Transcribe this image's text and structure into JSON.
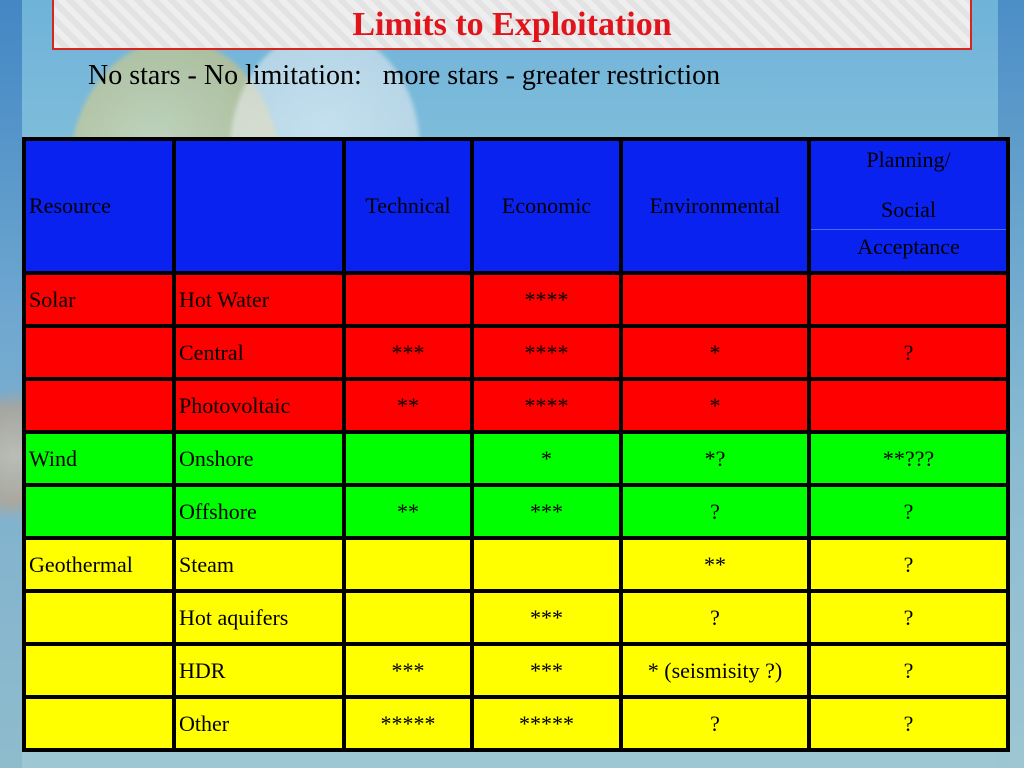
{
  "title": "Limits to Exploitation",
  "subtitle": "No stars - No limitation:   more stars - greater restriction",
  "header": {
    "resource": "Resource",
    "type": "",
    "technical": "Technical",
    "economic": "Economic",
    "environmental": "Environmental",
    "planning_line1": "Planning/",
    "planning_line2": "Social",
    "planning_line3": "Acceptance"
  },
  "rows": [
    {
      "group": "Solar",
      "type": "Hot Water",
      "technical": "",
      "economic": "****",
      "environmental": "",
      "planning": "",
      "color": "#ff0000"
    },
    {
      "group": "",
      "type": "Central",
      "technical": "***",
      "economic": "****",
      "environmental": "*",
      "planning": "?",
      "color": "#ff0000"
    },
    {
      "group": "",
      "type": "Photovoltaic",
      "technical": "**",
      "economic": "****",
      "environmental": "*",
      "planning": "",
      "color": "#ff0000"
    },
    {
      "group": "Wind",
      "type": "Onshore",
      "technical": "",
      "economic": "*",
      "environmental": "*?",
      "planning": "**???",
      "color": "#00ff00"
    },
    {
      "group": "",
      "type": "Offshore",
      "technical": "**",
      "economic": "***",
      "environmental": "?",
      "planning": "?",
      "color": "#00ff00"
    },
    {
      "group": "Geothermal",
      "type": "Steam",
      "technical": "",
      "economic": "",
      "environmental": "**",
      "planning": "?",
      "color": "#ffff00"
    },
    {
      "group": "",
      "type": "Hot aquifers",
      "technical": "",
      "economic": "***",
      "environmental": "?",
      "planning": "?",
      "color": "#ffff00"
    },
    {
      "group": "",
      "type": "HDR",
      "technical": "***",
      "economic": "***",
      "environmental": "* (seismisity ?)",
      "planning": "?",
      "color": "#ffff00"
    },
    {
      "group": "",
      "type": "Other",
      "technical": "*****",
      "economic": "*****",
      "environmental": "?",
      "planning": "?",
      "color": "#ffff00"
    }
  ],
  "colors": {
    "header": "#0a22f0",
    "title": "#e0141a",
    "solar": "#ff0000",
    "wind": "#00ff00",
    "geothermal": "#ffff00"
  }
}
